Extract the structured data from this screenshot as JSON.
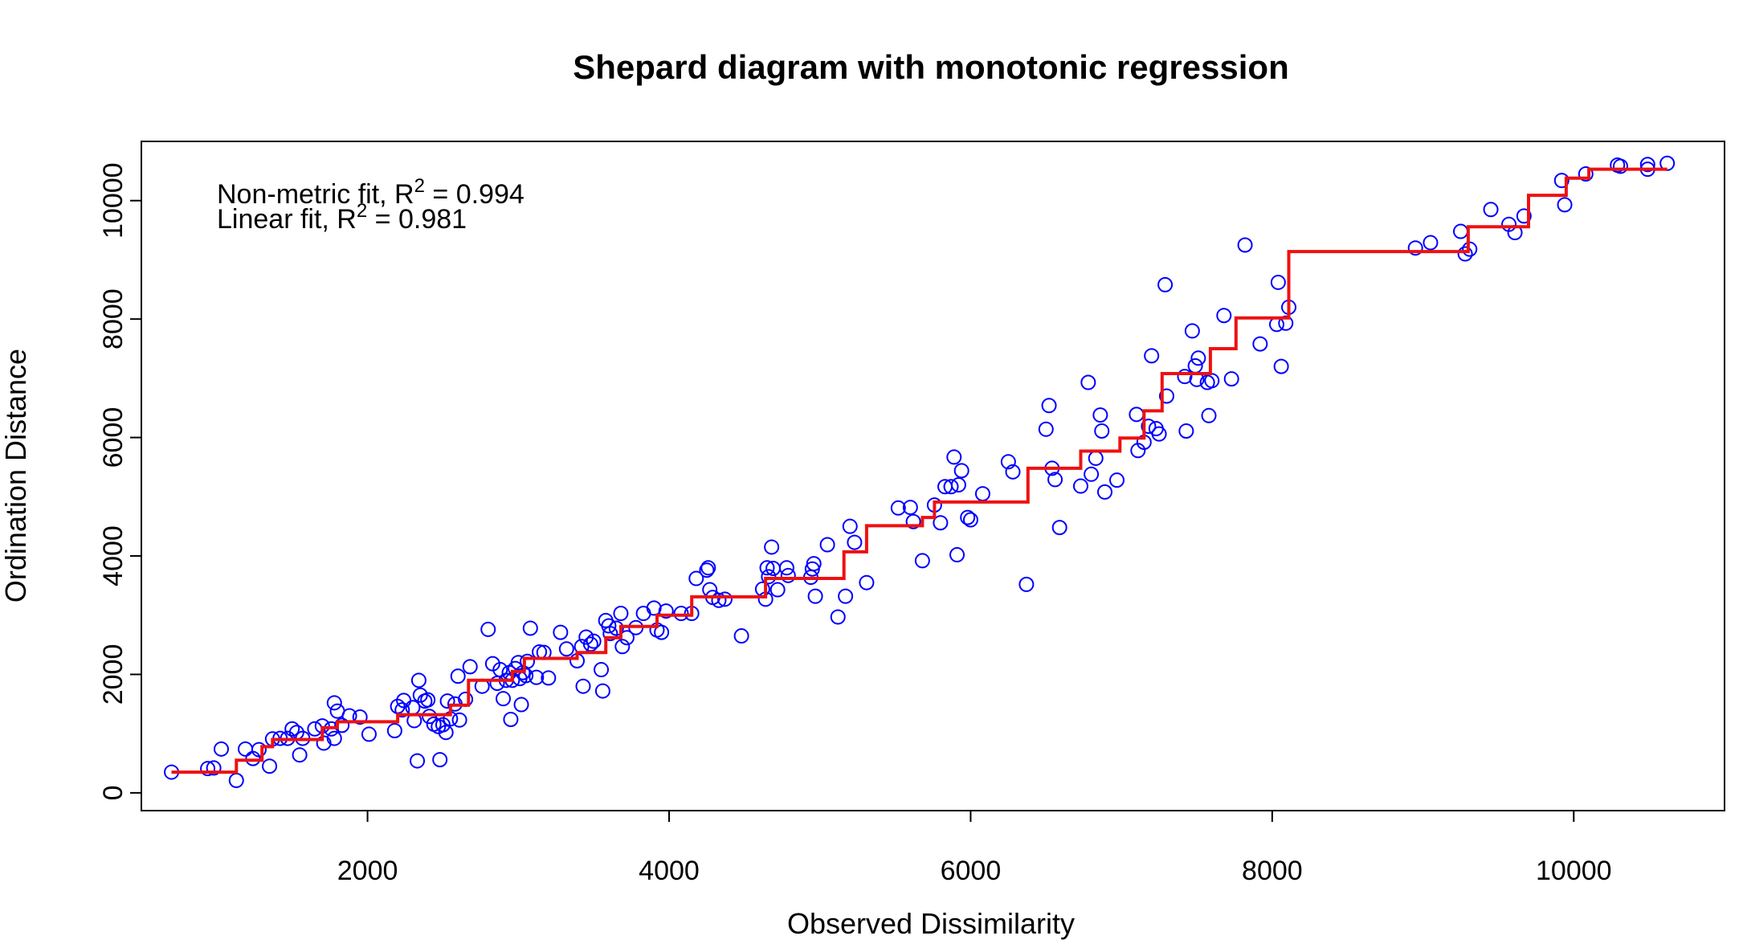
{
  "chart_data": {
    "type": "scatter",
    "title": "Shepard diagram with monotonic regression",
    "xlabel": "Observed Dissimilarity",
    "ylabel": "Ordination Distance",
    "xlim": [
      500,
      11000
    ],
    "ylim": [
      -300,
      11000
    ],
    "xticks": [
      2000,
      4000,
      6000,
      8000,
      10000
    ],
    "yticks": [
      0,
      2000,
      4000,
      6000,
      8000,
      10000
    ],
    "grid": false,
    "annotations": [
      {
        "prefix": "Non-metric fit, R",
        "sup": "2",
        "suffix": " = 0.994"
      },
      {
        "prefix": "Linear fit, R",
        "sup": "2",
        "suffix": " = 0.981"
      }
    ],
    "colors": {
      "points": "#0000ff",
      "regression": "#ee1111",
      "axis": "#000000"
    },
    "series": [
      {
        "type": "scatter",
        "marker": "open-circle",
        "points": [
          [
            700,
            350
          ],
          [
            940,
            410
          ],
          [
            980,
            420
          ],
          [
            1030,
            740
          ],
          [
            1130,
            210
          ],
          [
            1190,
            740
          ],
          [
            1240,
            580
          ],
          [
            1280,
            730
          ],
          [
            1350,
            450
          ],
          [
            1370,
            910
          ],
          [
            1420,
            920
          ],
          [
            1470,
            920
          ],
          [
            1500,
            1080
          ],
          [
            1530,
            1020
          ],
          [
            1550,
            640
          ],
          [
            1570,
            920
          ],
          [
            1650,
            1080
          ],
          [
            1700,
            1130
          ],
          [
            1710,
            840
          ],
          [
            1760,
            1080
          ],
          [
            1780,
            920
          ],
          [
            1780,
            1520
          ],
          [
            1800,
            1380
          ],
          [
            1830,
            1140
          ],
          [
            1880,
            1300
          ],
          [
            1950,
            1280
          ],
          [
            2010,
            990
          ],
          [
            2180,
            1050
          ],
          [
            2200,
            1460
          ],
          [
            2230,
            1400
          ],
          [
            2240,
            1560
          ],
          [
            2300,
            1440
          ],
          [
            2310,
            1220
          ],
          [
            2330,
            540
          ],
          [
            2340,
            1900
          ],
          [
            2350,
            1650
          ],
          [
            2380,
            1550
          ],
          [
            2400,
            1570
          ],
          [
            2410,
            1290
          ],
          [
            2440,
            1160
          ],
          [
            2470,
            1120
          ],
          [
            2480,
            560
          ],
          [
            2500,
            1150
          ],
          [
            2520,
            1020
          ],
          [
            2530,
            1550
          ],
          [
            2550,
            1250
          ],
          [
            2580,
            1500
          ],
          [
            2600,
            1970
          ],
          [
            2610,
            1230
          ],
          [
            2650,
            1580
          ],
          [
            2680,
            2130
          ],
          [
            2760,
            1800
          ],
          [
            2800,
            2760
          ],
          [
            2830,
            2180
          ],
          [
            2860,
            1850
          ],
          [
            2880,
            2080
          ],
          [
            2900,
            1590
          ],
          [
            2920,
            1900
          ],
          [
            2940,
            2030
          ],
          [
            2950,
            1240
          ],
          [
            2960,
            1900
          ],
          [
            2980,
            2100
          ],
          [
            3000,
            2200
          ],
          [
            3010,
            1930
          ],
          [
            3020,
            1490
          ],
          [
            3030,
            2030
          ],
          [
            3050,
            1980
          ],
          [
            3060,
            2220
          ],
          [
            3080,
            2780
          ],
          [
            3120,
            1950
          ],
          [
            3140,
            2380
          ],
          [
            3170,
            2370
          ],
          [
            3200,
            1940
          ],
          [
            3280,
            2710
          ],
          [
            3320,
            2430
          ],
          [
            3390,
            2230
          ],
          [
            3420,
            2470
          ],
          [
            3430,
            1800
          ],
          [
            3450,
            2630
          ],
          [
            3480,
            2510
          ],
          [
            3500,
            2560
          ],
          [
            3550,
            2080
          ],
          [
            3560,
            1720
          ],
          [
            3580,
            2910
          ],
          [
            3600,
            2820
          ],
          [
            3610,
            2690
          ],
          [
            3650,
            2780
          ],
          [
            3680,
            3030
          ],
          [
            3690,
            2470
          ],
          [
            3720,
            2620
          ],
          [
            3780,
            2790
          ],
          [
            3830,
            3030
          ],
          [
            3900,
            3120
          ],
          [
            3920,
            2750
          ],
          [
            3950,
            2710
          ],
          [
            3980,
            3070
          ],
          [
            4080,
            3030
          ],
          [
            4150,
            3030
          ],
          [
            4180,
            3620
          ],
          [
            4250,
            3760
          ],
          [
            4260,
            3800
          ],
          [
            4270,
            3430
          ],
          [
            4290,
            3300
          ],
          [
            4330,
            3250
          ],
          [
            4370,
            3270
          ],
          [
            4480,
            2650
          ],
          [
            4620,
            3440
          ],
          [
            4640,
            3270
          ],
          [
            4650,
            3800
          ],
          [
            4660,
            3650
          ],
          [
            4680,
            4150
          ],
          [
            4690,
            3790
          ],
          [
            4720,
            3430
          ],
          [
            4780,
            3800
          ],
          [
            4790,
            3670
          ],
          [
            4940,
            3640
          ],
          [
            4950,
            3780
          ],
          [
            4960,
            3870
          ],
          [
            4970,
            3320
          ],
          [
            5050,
            4190
          ],
          [
            5120,
            2970
          ],
          [
            5170,
            3320
          ],
          [
            5200,
            4500
          ],
          [
            5230,
            4230
          ],
          [
            5310,
            3550
          ],
          [
            5520,
            4810
          ],
          [
            5600,
            4820
          ],
          [
            5620,
            4580
          ],
          [
            5680,
            3920
          ],
          [
            5760,
            4860
          ],
          [
            5800,
            4560
          ],
          [
            5830,
            5170
          ],
          [
            5870,
            5170
          ],
          [
            5890,
            5670
          ],
          [
            5910,
            4020
          ],
          [
            5920,
            5200
          ],
          [
            5940,
            5440
          ],
          [
            5980,
            4650
          ],
          [
            6000,
            4610
          ],
          [
            6080,
            5050
          ],
          [
            6250,
            5590
          ],
          [
            6280,
            5420
          ],
          [
            6370,
            3520
          ],
          [
            6500,
            6140
          ],
          [
            6520,
            6540
          ],
          [
            6540,
            5480
          ],
          [
            6560,
            5290
          ],
          [
            6590,
            4480
          ],
          [
            6730,
            5180
          ],
          [
            6780,
            6930
          ],
          [
            6800,
            5380
          ],
          [
            6830,
            5650
          ],
          [
            6860,
            6380
          ],
          [
            6870,
            6110
          ],
          [
            6890,
            5080
          ],
          [
            6970,
            5280
          ],
          [
            7100,
            6390
          ],
          [
            7110,
            5780
          ],
          [
            7150,
            5920
          ],
          [
            7180,
            6190
          ],
          [
            7200,
            7380
          ],
          [
            7230,
            6150
          ],
          [
            7250,
            6060
          ],
          [
            7290,
            8580
          ],
          [
            7300,
            6700
          ],
          [
            7420,
            7030
          ],
          [
            7430,
            6110
          ],
          [
            7470,
            7800
          ],
          [
            7490,
            7210
          ],
          [
            7500,
            6980
          ],
          [
            7510,
            7340
          ],
          [
            7570,
            6930
          ],
          [
            7580,
            6370
          ],
          [
            7600,
            6960
          ],
          [
            7680,
            8060
          ],
          [
            7730,
            6990
          ],
          [
            7820,
            9250
          ],
          [
            7920,
            7580
          ],
          [
            8030,
            7910
          ],
          [
            8040,
            8620
          ],
          [
            8060,
            7200
          ],
          [
            8090,
            7930
          ],
          [
            8110,
            8200
          ],
          [
            8950,
            9200
          ],
          [
            9050,
            9290
          ],
          [
            9250,
            9480
          ],
          [
            9280,
            9100
          ],
          [
            9310,
            9180
          ],
          [
            9450,
            9850
          ],
          [
            9570,
            9600
          ],
          [
            9610,
            9460
          ],
          [
            9670,
            9740
          ],
          [
            9920,
            10340
          ],
          [
            9940,
            9930
          ],
          [
            10080,
            10450
          ],
          [
            10290,
            10600
          ],
          [
            10310,
            10580
          ],
          [
            10490,
            10530
          ],
          [
            10490,
            10610
          ],
          [
            10620,
            10630
          ]
        ]
      },
      {
        "type": "step",
        "points": [
          [
            700,
            350
          ],
          [
            1130,
            350
          ],
          [
            1130,
            550
          ],
          [
            1300,
            550
          ],
          [
            1300,
            780
          ],
          [
            1370,
            780
          ],
          [
            1370,
            900
          ],
          [
            1700,
            900
          ],
          [
            1700,
            1100
          ],
          [
            1800,
            1100
          ],
          [
            1800,
            1200
          ],
          [
            2200,
            1200
          ],
          [
            2200,
            1320
          ],
          [
            2550,
            1320
          ],
          [
            2550,
            1480
          ],
          [
            2670,
            1480
          ],
          [
            2670,
            1900
          ],
          [
            2960,
            1900
          ],
          [
            2960,
            2050
          ],
          [
            3040,
            2050
          ],
          [
            3040,
            2270
          ],
          [
            3390,
            2270
          ],
          [
            3390,
            2370
          ],
          [
            3580,
            2370
          ],
          [
            3580,
            2620
          ],
          [
            3680,
            2620
          ],
          [
            3680,
            2810
          ],
          [
            3920,
            2810
          ],
          [
            3920,
            3000
          ],
          [
            4150,
            3000
          ],
          [
            4150,
            3310
          ],
          [
            4640,
            3310
          ],
          [
            4640,
            3620
          ],
          [
            5160,
            3620
          ],
          [
            5160,
            4070
          ],
          [
            5310,
            4070
          ],
          [
            5310,
            4510
          ],
          [
            5680,
            4510
          ],
          [
            5680,
            4650
          ],
          [
            5760,
            4650
          ],
          [
            5760,
            4910
          ],
          [
            6380,
            4910
          ],
          [
            6380,
            5480
          ],
          [
            6730,
            5480
          ],
          [
            6730,
            5770
          ],
          [
            6990,
            5770
          ],
          [
            6990,
            5990
          ],
          [
            7150,
            5990
          ],
          [
            7150,
            6450
          ],
          [
            7270,
            6450
          ],
          [
            7270,
            7080
          ],
          [
            7590,
            7080
          ],
          [
            7590,
            7500
          ],
          [
            7760,
            7500
          ],
          [
            7760,
            8020
          ],
          [
            8110,
            8020
          ],
          [
            8110,
            9140
          ],
          [
            9300,
            9140
          ],
          [
            9300,
            9560
          ],
          [
            9700,
            9560
          ],
          [
            9700,
            10090
          ],
          [
            9950,
            10090
          ],
          [
            9950,
            10380
          ],
          [
            10100,
            10380
          ],
          [
            10100,
            10530
          ],
          [
            10620,
            10530
          ]
        ]
      }
    ]
  }
}
